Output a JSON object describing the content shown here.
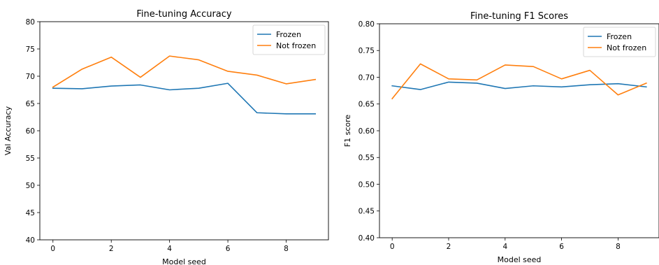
{
  "chart_data": [
    {
      "type": "line",
      "title": "Fine-tuning Accuracy",
      "xlabel": "Model seed",
      "ylabel": "Val Accuracy",
      "x": [
        0,
        1,
        2,
        3,
        4,
        5,
        6,
        7,
        8,
        9
      ],
      "xlim": [
        -0.45,
        9.45
      ],
      "ylim": [
        40,
        80
      ],
      "xticks": [
        0,
        2,
        4,
        6,
        8
      ],
      "yticks": [
        40,
        45,
        50,
        55,
        60,
        65,
        70,
        75,
        80
      ],
      "ytick_format": "int",
      "grid": false,
      "legend_position": "top-right",
      "series": [
        {
          "name": "Frozen",
          "color": "#1f77b4",
          "values": [
            67.8,
            67.7,
            68.2,
            68.4,
            67.5,
            67.8,
            68.7,
            63.3,
            63.1,
            63.1
          ]
        },
        {
          "name": "Not frozen",
          "color": "#ff7f0e",
          "values": [
            68.0,
            71.3,
            73.5,
            69.8,
            73.7,
            73.0,
            70.9,
            70.2,
            68.6,
            69.4
          ]
        }
      ]
    },
    {
      "type": "line",
      "title": "Fine-tuning F1 Scores",
      "xlabel": "Model seed",
      "ylabel": "F1 score",
      "x": [
        0,
        1,
        2,
        3,
        4,
        5,
        6,
        7,
        8,
        9
      ],
      "xlim": [
        -0.45,
        9.45
      ],
      "ylim": [
        0.4,
        0.8
      ],
      "xticks": [
        0,
        2,
        4,
        6,
        8
      ],
      "yticks": [
        0.4,
        0.45,
        0.5,
        0.55,
        0.6,
        0.65,
        0.7,
        0.75,
        0.8
      ],
      "ytick_format": "2dp",
      "grid": false,
      "legend_position": "top-right",
      "series": [
        {
          "name": "Frozen",
          "color": "#1f77b4",
          "values": [
            0.684,
            0.677,
            0.691,
            0.689,
            0.679,
            0.684,
            0.682,
            0.686,
            0.688,
            0.682
          ]
        },
        {
          "name": "Not frozen",
          "color": "#ff7f0e",
          "values": [
            0.66,
            0.725,
            0.697,
            0.695,
            0.723,
            0.72,
            0.697,
            0.713,
            0.667,
            0.689
          ]
        }
      ]
    }
  ]
}
